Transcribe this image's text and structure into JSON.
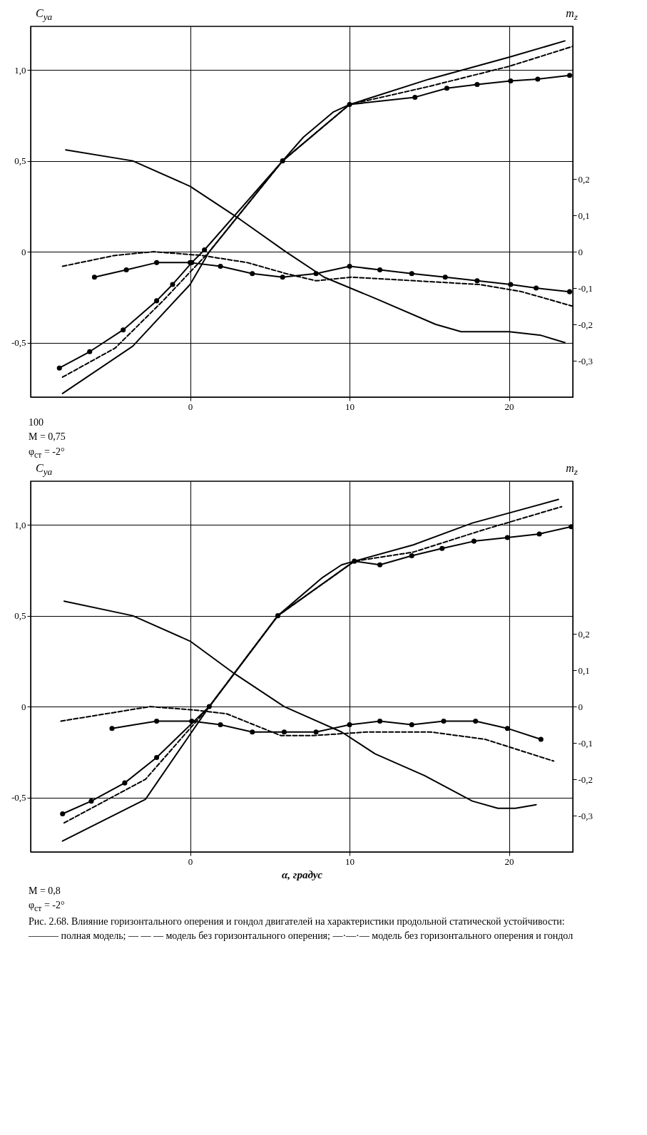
{
  "chart_data": [
    {
      "type": "line",
      "ylabel": "C$_{ya}$",
      "y2label": "m$_{z}$",
      "xlim": [
        -10,
        24
      ],
      "xticks": [
        0,
        10,
        20
      ],
      "ylim": [
        -0.8,
        1.24
      ],
      "yticks": [
        {
          "value": -0.5,
          "label": "-0,5"
        },
        0,
        {
          "value": 0.5,
          "label": "0,5"
        },
        {
          "value": 1,
          "label": "1,0"
        }
      ],
      "y2lim": [
        -0.4,
        0.62
      ],
      "y2ticks": [
        {
          "value": -0.3,
          "label": "-0,3"
        },
        {
          "value": -0.2,
          "label": "-0,2"
        },
        {
          "value": -0.1,
          "label": "-0,1"
        },
        0,
        {
          "value": 0.1,
          "label": "0,1"
        },
        {
          "value": 0.2,
          "label": "0,2"
        }
      ],
      "grid": true,
      "annotations": [
        "100",
        "M = 0,75",
        "φ$_{ст}$ = -2°"
      ],
      "series": [
        {
          "color": "#000000",
          "line_style": "solid",
          "x": [
            -8,
            -3.6,
            0,
            1.2,
            5.8,
            7.1,
            9,
            10,
            15,
            20,
            23.5
          ],
          "values": [
            -0.78,
            -0.52,
            -0.18,
            0,
            0.5,
            0.63,
            0.77,
            0.81,
            0.95,
            1.07,
            1.16
          ]
        },
        {
          "color": "#000000",
          "line_style": "dashed",
          "x": [
            -8,
            -4.7,
            -1.7,
            1.2,
            5.8,
            10,
            15,
            20,
            24
          ],
          "values": [
            -0.69,
            -0.53,
            -0.27,
            0,
            0.5,
            0.81,
            0.91,
            1.02,
            1.13
          ]
        },
        {
          "color": "#000000",
          "line_style": "solid",
          "marker": "circle",
          "x": [
            -8.2,
            -6.3,
            -4.2,
            -2.1,
            -1.1,
            0.1,
            0.9,
            5.8,
            10,
            14.1,
            16.1,
            18,
            20.1,
            21.8,
            23.8
          ],
          "values": [
            -0.64,
            -0.55,
            -0.43,
            -0.27,
            -0.18,
            -0.06,
            0.01,
            0.5,
            0.81,
            0.85,
            0.9,
            0.92,
            0.94,
            0.95,
            0.97
          ]
        },
        {
          "color": "#000000",
          "line_style": "solid",
          "axis": "y2",
          "x": [
            -7.8,
            -3.6,
            0,
            3.1,
            6,
            8.4,
            11.7,
            15.4,
            17,
            20,
            22,
            23.5
          ],
          "values": [
            0.28,
            0.25,
            0.18,
            0.09,
            0,
            -0.07,
            -0.13,
            -0.2,
            -0.22,
            -0.22,
            -0.23,
            -0.25
          ]
        },
        {
          "color": "#000000",
          "line_style": "dashed",
          "axis": "y2",
          "x": [
            -8,
            -4.7,
            -2.3,
            0.7,
            3.6,
            6,
            7.9,
            10.1,
            14.1,
            18.1,
            20.8,
            24
          ],
          "values": [
            -0.04,
            -0.01,
            0,
            -0.01,
            -0.03,
            -0.06,
            -0.08,
            -0.07,
            -0.08,
            -0.09,
            -0.11,
            -0.15
          ]
        },
        {
          "color": "#000000",
          "line_style": "solid",
          "marker": "circle",
          "axis": "y2",
          "x": [
            -6,
            -4,
            -2.1,
            0,
            1.9,
            3.9,
            5.8,
            7.9,
            10,
            11.9,
            13.9,
            16,
            18,
            20.1,
            21.7,
            23.8
          ],
          "values": [
            -0.07,
            -0.05,
            -0.03,
            -0.03,
            -0.04,
            -0.06,
            -0.07,
            -0.06,
            -0.04,
            -0.05,
            -0.06,
            -0.07,
            -0.08,
            -0.09,
            -0.1,
            -0.11
          ]
        }
      ]
    },
    {
      "type": "line",
      "ylabel": "C$_{ya}$",
      "y2label": "m$_{z}$",
      "xlabel": "α, градус",
      "xlim": [
        -10,
        24
      ],
      "xticks": [
        0,
        10,
        20
      ],
      "ylim": [
        -0.8,
        1.24
      ],
      "yticks": [
        {
          "value": -0.5,
          "label": "-0,5"
        },
        0,
        {
          "value": 0.5,
          "label": "0,5"
        },
        {
          "value": 1,
          "label": "1,0"
        }
      ],
      "y2lim": [
        -0.4,
        0.62
      ],
      "y2ticks": [
        {
          "value": -0.3,
          "label": "-0,3"
        },
        {
          "value": -0.2,
          "label": "-0,2"
        },
        {
          "value": -0.1,
          "label": "-0,1"
        },
        0,
        {
          "value": 0.1,
          "label": "0,1"
        },
        {
          "value": 0.2,
          "label": "0,2"
        }
      ],
      "grid": true,
      "annotations": [
        "M = 0,8",
        "φ$_{ст}$ = -2°",
        "Рис. 2.68. Влияние горизонтального оперения и гондол двигателей на характеристики продольной статической устойчивости:",
        "——— полная модель; — — — модель без горизонтального оперения; —·—·— модель без горизонтального оперения и гондол"
      ],
      "series": [
        {
          "color": "#000000",
          "line_style": "solid",
          "x": [
            -8,
            -2.8,
            0.1,
            1.2,
            5.5,
            8.3,
            9.5,
            10.3,
            14,
            17.7,
            23.1
          ],
          "values": [
            -0.74,
            -0.51,
            -0.14,
            0,
            0.5,
            0.71,
            0.78,
            0.8,
            0.89,
            1.01,
            1.14
          ]
        },
        {
          "color": "#000000",
          "line_style": "dashed",
          "x": [
            -7.9,
            -2.8,
            1.2,
            5.5,
            10.3,
            14,
            18.3,
            23.3
          ],
          "values": [
            -0.64,
            -0.4,
            0,
            0.5,
            0.8,
            0.85,
            0.97,
            1.1
          ]
        },
        {
          "color": "#000000",
          "line_style": "solid",
          "marker": "circle",
          "x": [
            -8,
            -6.2,
            -4.1,
            -2.1,
            1.2,
            5.5,
            10.3,
            11.9,
            13.9,
            15.8,
            17.8,
            19.9,
            21.9,
            23.9
          ],
          "values": [
            -0.59,
            -0.52,
            -0.42,
            -0.28,
            0,
            0.5,
            0.8,
            0.78,
            0.83,
            0.87,
            0.91,
            0.93,
            0.95,
            0.99
          ]
        },
        {
          "color": "#000000",
          "line_style": "solid",
          "axis": "y2",
          "x": [
            -7.9,
            -3.6,
            0,
            2.8,
            5.9,
            9.5,
            11.6,
            14.7,
            17.7,
            19.3,
            20.4,
            21.7
          ],
          "values": [
            0.29,
            0.25,
            0.18,
            0.09,
            0,
            -0.07,
            -0.13,
            -0.19,
            -0.26,
            -0.28,
            -0.28,
            -0.27
          ]
        },
        {
          "color": "#000000",
          "line_style": "dashed",
          "axis": "y2",
          "x": [
            -8.1,
            -2.5,
            0.4,
            2.3,
            5.7,
            7.6,
            11.1,
            15.1,
            18.5,
            22.8
          ],
          "values": [
            -0.04,
            0,
            -0.01,
            -0.02,
            -0.08,
            -0.08,
            -0.07,
            -0.07,
            -0.09,
            -0.15
          ]
        },
        {
          "color": "#000000",
          "line_style": "solid",
          "marker": "circle",
          "axis": "y2",
          "x": [
            -4.9,
            -2.1,
            0.1,
            1.9,
            3.9,
            5.9,
            7.9,
            10,
            11.9,
            13.9,
            15.9,
            17.9,
            19.9,
            22
          ],
          "values": [
            -0.06,
            -0.04,
            -0.04,
            -0.05,
            -0.07,
            -0.07,
            -0.07,
            -0.05,
            -0.04,
            -0.05,
            -0.04,
            -0.04,
            -0.06,
            -0.09
          ]
        }
      ]
    }
  ]
}
